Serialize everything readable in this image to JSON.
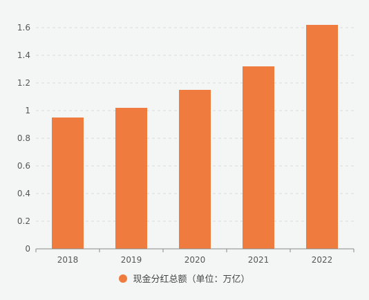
{
  "chart_data": {
    "type": "bar",
    "categories": [
      "2018",
      "2019",
      "2020",
      "2021",
      "2022"
    ],
    "series": [
      {
        "name": "现金分红总额（单位：万亿）",
        "values": [
          0.95,
          1.02,
          1.15,
          1.32,
          1.62
        ]
      }
    ],
    "ylim": [
      0,
      1.7
    ],
    "yticks": [
      "0",
      "0.2",
      "0.4",
      "0.6",
      "0.8",
      "1",
      "1.2",
      "1.4",
      "1.6"
    ],
    "grid": true,
    "legend_position": "bottom-center",
    "colors": {
      "bar": "#ef7b3f",
      "grid": "#d6d9db",
      "axis": "#888888",
      "background": "#f4f6f6"
    }
  }
}
